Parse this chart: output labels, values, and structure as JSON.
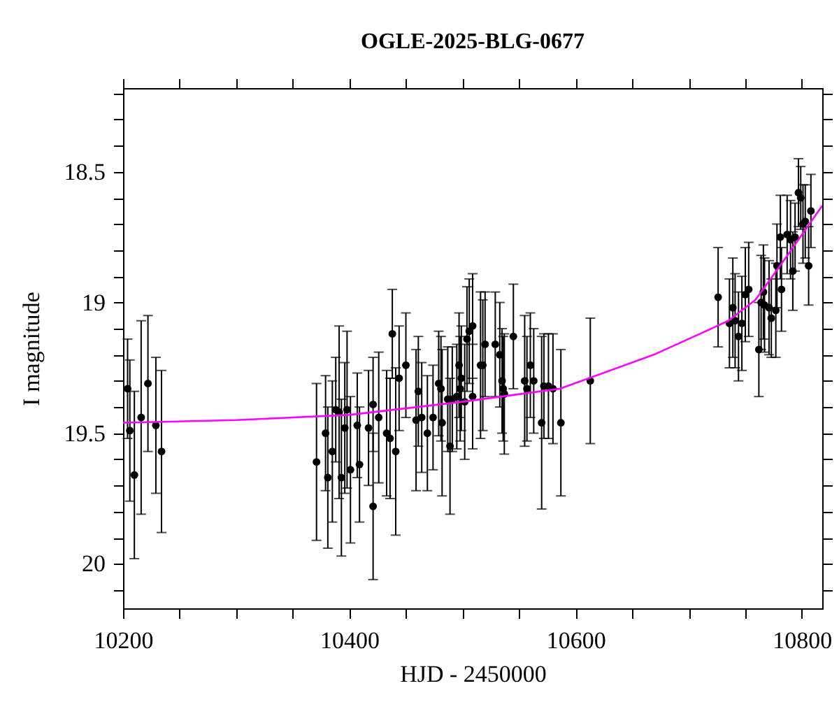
{
  "chart_data": {
    "type": "scatter",
    "title": "OGLE-2025-BLG-0677",
    "xlabel": "HJD - 2450000",
    "ylabel": "I magnitude",
    "xlim": [
      10200,
      10818
    ],
    "ylim": [
      20.17,
      18.18
    ],
    "xticks": [
      10200,
      {
        "value": 10250,
        "label": null
      },
      {
        "value": 10300,
        "label": null
      },
      {
        "value": 10350,
        "label": null
      },
      10400,
      {
        "value": 10450,
        "label": null
      },
      {
        "value": 10500,
        "label": null
      },
      {
        "value": 10550,
        "label": null
      },
      10600,
      {
        "value": 10650,
        "label": null
      },
      {
        "value": 10700,
        "label": null
      },
      {
        "value": 10750,
        "label": null
      },
      10800
    ],
    "yticks": [
      {
        "value": 18.2,
        "label": null
      },
      {
        "value": 18.3,
        "label": null
      },
      {
        "value": 18.4,
        "label": null
      },
      18.5,
      {
        "value": 18.6,
        "label": null
      },
      {
        "value": 18.7,
        "label": null
      },
      {
        "value": 18.8,
        "label": null
      },
      {
        "value": 18.9,
        "label": null
      },
      19,
      {
        "value": 19.1,
        "label": null
      },
      {
        "value": 19.2,
        "label": null
      },
      {
        "value": 19.3,
        "label": null
      },
      {
        "value": 19.4,
        "label": null
      },
      19.5,
      {
        "value": 19.6,
        "label": null
      },
      {
        "value": 19.7,
        "label": null
      },
      {
        "value": 19.8,
        "label": null
      },
      {
        "value": 19.9,
        "label": null
      },
      20,
      {
        "value": 20.1,
        "label": null
      }
    ],
    "grid": false,
    "marker": "circle",
    "series": [
      {
        "type": "scatter",
        "color": "#000000",
        "x": [
          10204,
          10206,
          10210,
          10216,
          10222,
          10229,
          10234,
          10371,
          10379,
          10381,
          10385,
          10388,
          10391,
          10393,
          10396,
          10398,
          10401,
          10407,
          10409,
          10417,
          10421,
          10421,
          10426,
          10433,
          10436,
          10438,
          10441,
          10444,
          10450,
          10459,
          10461,
          10464,
          10469,
          10474,
          10479,
          10481,
          10482,
          10487,
          10489,
          10491,
          10495,
          10497,
          10498,
          10499,
          10502,
          10504,
          10506,
          10509,
          10509,
          10516,
          10518,
          10520,
          10529,
          10533,
          10535,
          10536,
          10537,
          10545,
          10555,
          10557,
          10560,
          10563,
          10570,
          10572,
          10576,
          10580,
          10587,
          10613,
          10726,
          10736,
          10739,
          10741,
          10744,
          10747,
          10750,
          10753,
          10762,
          10764,
          10766,
          10767,
          10771,
          10773,
          10777,
          10778,
          10781,
          10782,
          10787,
          10790,
          10792,
          10794,
          10797,
          10799,
          10801,
          10803,
          10806,
          10808
        ],
        "values": [
          19.33,
          19.49,
          19.66,
          19.44,
          19.31,
          19.47,
          19.57,
          19.61,
          19.5,
          19.67,
          19.57,
          19.41,
          19.42,
          19.67,
          19.48,
          19.41,
          19.64,
          19.47,
          19.62,
          19.48,
          19.39,
          19.78,
          19.44,
          19.5,
          19.52,
          19.12,
          19.57,
          19.29,
          19.24,
          19.45,
          19.34,
          19.44,
          19.5,
          19.44,
          19.31,
          19.33,
          19.46,
          19.37,
          19.55,
          19.37,
          19.36,
          19.24,
          19.33,
          19.29,
          19.38,
          19.14,
          19.11,
          19.09,
          19.36,
          19.24,
          19.24,
          19.16,
          19.16,
          19.2,
          19.3,
          19.33,
          19.35,
          19.13,
          19.3,
          19.33,
          19.24,
          19.3,
          19.46,
          19.32,
          19.32,
          19.33,
          19.46,
          19.3,
          18.98,
          19.08,
          19.02,
          19.07,
          19.13,
          19.08,
          18.97,
          18.95,
          19.18,
          19,
          18.96,
          19.01,
          19.02,
          19.06,
          19.03,
          18.86,
          18.75,
          18.95,
          18.74,
          18.76,
          18.88,
          18.75,
          18.58,
          18.6,
          18.7,
          18.69,
          18.86,
          18.65
        ],
        "errors": [
          0.19,
          0.27,
          0.32,
          0.37,
          0.26,
          0.26,
          0.31,
          0.3,
          0.22,
          0.27,
          0.27,
          0.2,
          0.33,
          0.3,
          0.25,
          0.3,
          0.28,
          0.2,
          0.22,
          0.22,
          0.18,
          0.28,
          0.25,
          0.24,
          0.23,
          0.17,
          0.32,
          0.2,
          0.2,
          0.27,
          0.21,
          0.21,
          0.22,
          0.2,
          0.2,
          0.2,
          0.28,
          0.2,
          0.26,
          0.2,
          0.2,
          0.2,
          0.2,
          0.2,
          0.22,
          0.2,
          0.2,
          0.2,
          0.2,
          0.28,
          0.25,
          0.2,
          0.2,
          0.2,
          0.2,
          0.2,
          0.23,
          0.2,
          0.25,
          0.2,
          0.2,
          0.2,
          0.33,
          0.2,
          0.2,
          0.21,
          0.28,
          0.24,
          0.19,
          0.17,
          0.19,
          0.18,
          0.17,
          0.18,
          0.18,
          0.18,
          0.18,
          0.18,
          0.18,
          0.18,
          0.18,
          0.15,
          0.18,
          0.16,
          0.16,
          0.16,
          0.15,
          0.15,
          0.15,
          0.13,
          0.13,
          0.12,
          0.15,
          0.14,
          0.15,
          0.14
        ]
      },
      {
        "type": "line",
        "color": "#ff00ff",
        "marker": "none",
        "line_style": "solid",
        "x": [
          10200,
          10300,
          10400,
          10500,
          10586,
          10669,
          10710,
          10735,
          10759,
          10784,
          10818
        ],
        "values": [
          19.46,
          19.45,
          19.43,
          19.38,
          19.33,
          19.2,
          19.12,
          19.07,
          18.99,
          18.84,
          18.63
        ]
      }
    ]
  }
}
